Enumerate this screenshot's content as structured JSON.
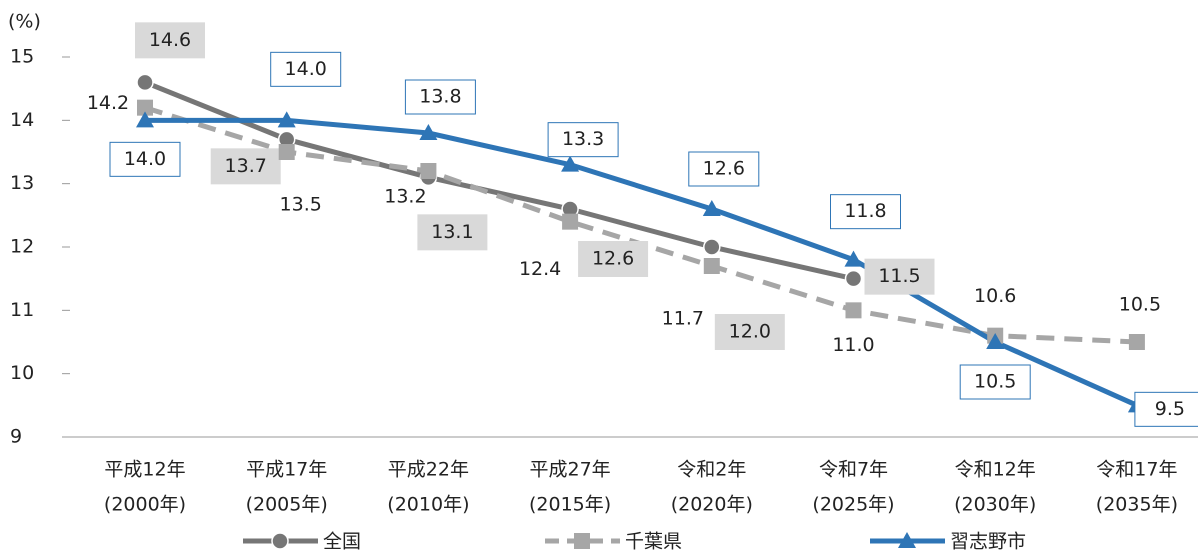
{
  "chart_data": {
    "type": "line",
    "y_label": "(%)",
    "categories": [
      [
        "平成12年",
        "(2000年)"
      ],
      [
        "平成17年",
        "(2005年)"
      ],
      [
        "平成22年",
        "(2010年)"
      ],
      [
        "平成27年",
        "(2015年)"
      ],
      [
        "令和2年",
        "(2020年)"
      ],
      [
        "令和7年",
        "(2025年)"
      ],
      [
        "令和12年",
        "(2030年)"
      ],
      [
        "令和17年",
        "(2035年)"
      ]
    ],
    "ylim": [
      9,
      15
    ],
    "yticks": [
      9,
      10,
      11,
      12,
      13,
      14,
      15
    ],
    "legend": "bottom",
    "series": [
      {
        "name": "全国",
        "color": "#767676",
        "dash": false,
        "marker": "circle",
        "values": [
          14.6,
          13.7,
          13.1,
          12.6,
          12.0,
          11.5,
          null,
          null
        ],
        "value_labels": [
          "14.6",
          "13.7",
          "13.1",
          "12.6",
          "12.0",
          "11.5",
          null,
          null
        ]
      },
      {
        "name": "千葉県",
        "color": "#a6a6a6",
        "dash": true,
        "marker": "square",
        "values": [
          14.2,
          13.5,
          13.2,
          12.4,
          11.7,
          11.0,
          10.6,
          10.5
        ],
        "value_labels": [
          "14.2",
          "13.5",
          "13.2",
          "12.4",
          "11.7",
          "11.0",
          "10.6",
          "10.5"
        ]
      },
      {
        "name": "習志野市",
        "color": "#2e75b6",
        "dash": false,
        "marker": "triangle",
        "values": [
          14.0,
          14.0,
          13.8,
          13.3,
          12.6,
          11.8,
          10.5,
          9.5
        ],
        "value_labels": [
          "14.0",
          "14.0",
          "13.8",
          "13.3",
          "12.6",
          "11.8",
          "10.5",
          "9.5"
        ]
      }
    ]
  }
}
